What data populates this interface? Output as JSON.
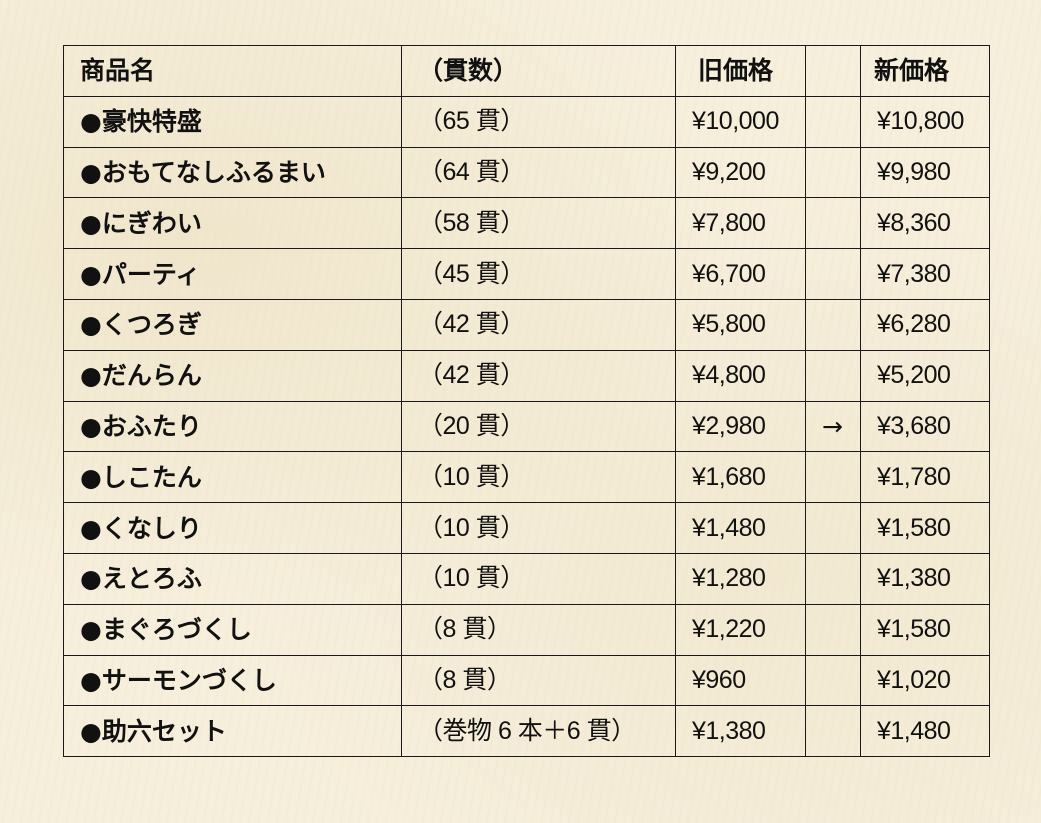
{
  "table": {
    "headers": {
      "name": "商品名",
      "count": "（貫数）",
      "old_price": "旧価格",
      "arrow": "",
      "new_price": "新価格"
    },
    "rows": [
      {
        "name": "●豪快特盛",
        "count": "（65 貫）",
        "old_price": "¥10,000",
        "arrow": "",
        "new_price": "¥10,800"
      },
      {
        "name": "●おもてなしふるまい",
        "count": "（64 貫）",
        "old_price": "¥9,200",
        "arrow": "",
        "new_price": "¥9,980"
      },
      {
        "name": "●にぎわい",
        "count": "（58 貫）",
        "old_price": "¥7,800",
        "arrow": "",
        "new_price": "¥8,360"
      },
      {
        "name": "●パーティ",
        "count": "（45 貫）",
        "old_price": "¥6,700",
        "arrow": "",
        "new_price": "¥7,380"
      },
      {
        "name": "●くつろぎ",
        "count": "（42 貫）",
        "old_price": "¥5,800",
        "arrow": "",
        "new_price": "¥6,280"
      },
      {
        "name": "●だんらん",
        "count": "（42 貫）",
        "old_price": "¥4,800",
        "arrow": "",
        "new_price": "¥5,200"
      },
      {
        "name": "●おふたり",
        "count": "（20 貫）",
        "old_price": "¥2,980",
        "arrow": "→",
        "new_price": "¥3,680"
      },
      {
        "name": "●しこたん",
        "count": "（10 貫）",
        "old_price": "¥1,680",
        "arrow": "",
        "new_price": "¥1,780"
      },
      {
        "name": "●くなしり",
        "count": "（10 貫）",
        "old_price": "¥1,480",
        "arrow": "",
        "new_price": "¥1,580"
      },
      {
        "name": "●えとろふ",
        "count": "（10 貫）",
        "old_price": "¥1,280",
        "arrow": "",
        "new_price": "¥1,380"
      },
      {
        "name": "●まぐろづくし",
        "count": "（8 貫）",
        "old_price": "¥1,220",
        "arrow": "",
        "new_price": "¥1,580"
      },
      {
        "name": "●サーモンづくし",
        "count": "（8 貫）",
        "old_price": "¥960",
        "arrow": "",
        "new_price": "¥1,020"
      },
      {
        "name": "●助六セット",
        "count": "（巻物 6 本＋6 貫）",
        "old_price": "¥1,380",
        "arrow": "",
        "new_price": "¥1,480"
      }
    ]
  }
}
